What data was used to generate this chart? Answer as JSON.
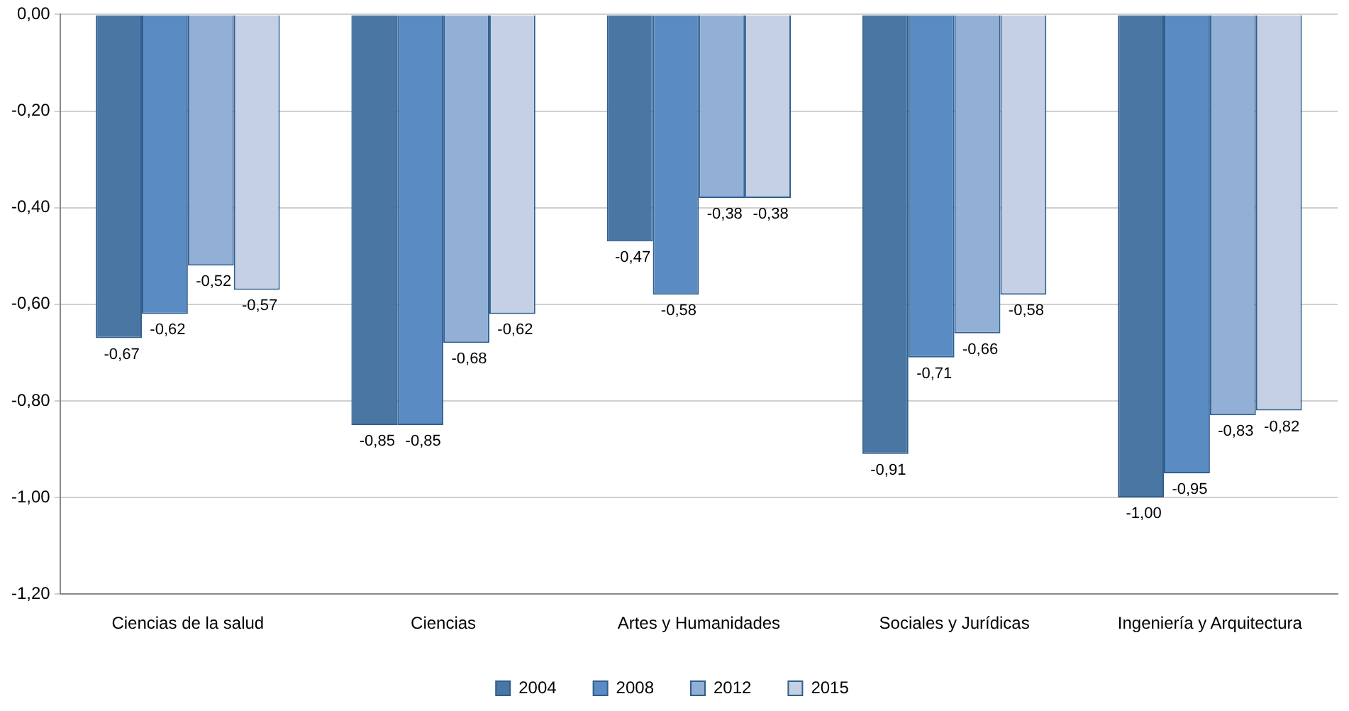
{
  "chart_data": {
    "type": "bar",
    "categories": [
      "Ciencias de la salud",
      "Ciencias",
      "Artes y Humanidades",
      "Sociales y Jurídicas",
      "Ingeniería y Arquitectura"
    ],
    "series": [
      {
        "name": "2004",
        "color": "#4a76a4",
        "values": [
          -0.67,
          -0.85,
          -0.47,
          -0.91,
          -1.0
        ]
      },
      {
        "name": "2008",
        "color": "#5a8cc3",
        "values": [
          -0.62,
          -0.85,
          -0.58,
          -0.71,
          -0.95
        ]
      },
      {
        "name": "2012",
        "color": "#92afd6",
        "values": [
          -0.52,
          -0.68,
          -0.38,
          -0.66,
          -0.83
        ]
      },
      {
        "name": "2015",
        "color": "#c5d0e5",
        "values": [
          -0.57,
          -0.62,
          -0.38,
          -0.58,
          -0.82
        ]
      }
    ],
    "value_labels": [
      [
        "-0,67",
        "-0,85",
        "-0,47",
        "-0,91",
        "-1,00"
      ],
      [
        "-0,62",
        "-0,85",
        "-0,58",
        "-0,71",
        "-0,95"
      ],
      [
        "-0,52",
        "-0,68",
        "-0,38",
        "-0,66",
        "-0,83"
      ],
      [
        "-0,57",
        "-0,62",
        "-0,38",
        "-0,58",
        "-0,82"
      ]
    ],
    "ylim": [
      -1.2,
      0
    ],
    "yticks": [
      {
        "value": 0,
        "label": "0,00"
      },
      {
        "value": -0.2,
        "label": "-0,20"
      },
      {
        "value": -0.4,
        "label": "-0,40"
      },
      {
        "value": -0.6,
        "label": "-0,60"
      },
      {
        "value": -0.8,
        "label": "-0,80"
      },
      {
        "value": -1.0,
        "label": "-1,00"
      },
      {
        "value": -1.2,
        "label": "-1,20"
      }
    ],
    "grid": "y",
    "legend": "bottom"
  }
}
